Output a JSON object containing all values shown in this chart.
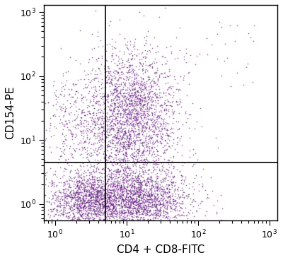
{
  "xlabel": "CD4 + CD8-FITC",
  "ylabel": "CD154-PE",
  "dot_color": "#6B1F8A",
  "dot_alpha": 0.6,
  "dot_size": 1.5,
  "xlim_log": [
    0.7,
    1300
  ],
  "ylim_log": [
    0.55,
    1300
  ],
  "xline": 5.0,
  "yline": 4.5,
  "background_color": "#ffffff",
  "xlabel_fontsize": 11,
  "ylabel_fontsize": 11,
  "tick_fontsize": 9
}
